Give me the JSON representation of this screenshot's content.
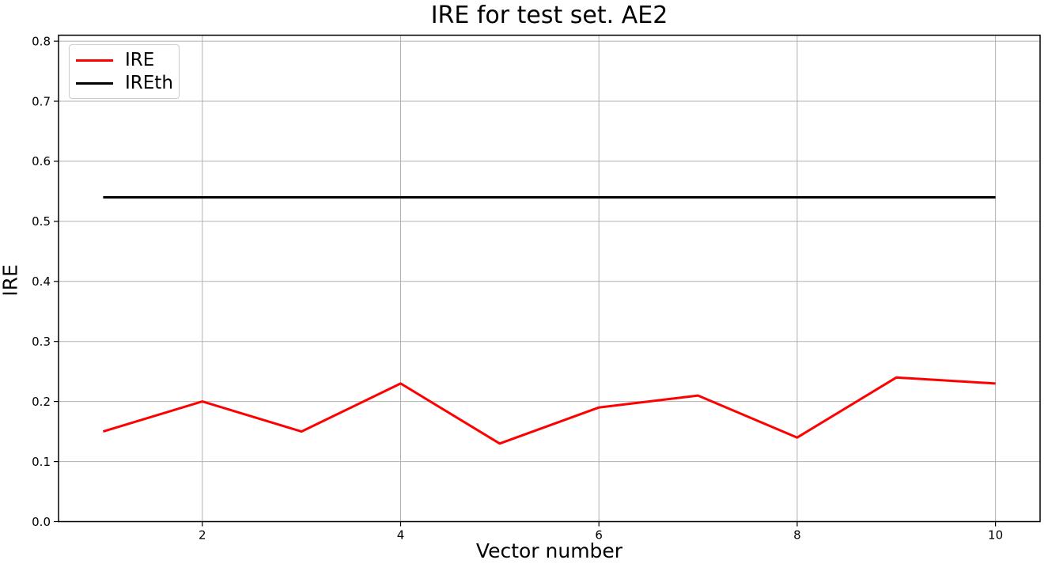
{
  "figure": {
    "background": "#ffffff"
  },
  "chart_data": {
    "type": "line",
    "title": "IRE for test set. AE2",
    "xlabel": "Vector number",
    "ylabel": "IRE",
    "x": [
      1,
      2,
      3,
      4,
      5,
      6,
      7,
      8,
      9,
      10
    ],
    "series": [
      {
        "name": "IRE",
        "color": "#ff0000",
        "values": [
          0.15,
          0.2,
          0.15,
          0.23,
          0.13,
          0.19,
          0.21,
          0.14,
          0.24,
          0.23
        ]
      },
      {
        "name": "IREth",
        "color": "#000000",
        "values": [
          0.54,
          0.54,
          0.54,
          0.54,
          0.54,
          0.54,
          0.54,
          0.54,
          0.54,
          0.54
        ]
      }
    ],
    "xlim": [
      0.55,
      10.45
    ],
    "ylim": [
      0,
      0.81
    ],
    "xtick_values": [
      2,
      4,
      6,
      8,
      10
    ],
    "xtick_labels": [
      "2",
      "4",
      "6",
      "8",
      "10"
    ],
    "ytick_values": [
      0.0,
      0.1,
      0.2,
      0.3,
      0.4,
      0.5,
      0.6,
      0.7,
      0.8
    ],
    "ytick_labels": [
      "0.0",
      "0.1",
      "0.2",
      "0.3",
      "0.4",
      "0.5",
      "0.6",
      "0.7",
      "0.8"
    ],
    "grid": true,
    "legend": {
      "position": "upper left",
      "entries": [
        "IRE",
        "IREth"
      ]
    },
    "colors": {
      "grid": "#b0b0b0",
      "spine": "#000000",
      "tick_text": "#000000"
    }
  }
}
